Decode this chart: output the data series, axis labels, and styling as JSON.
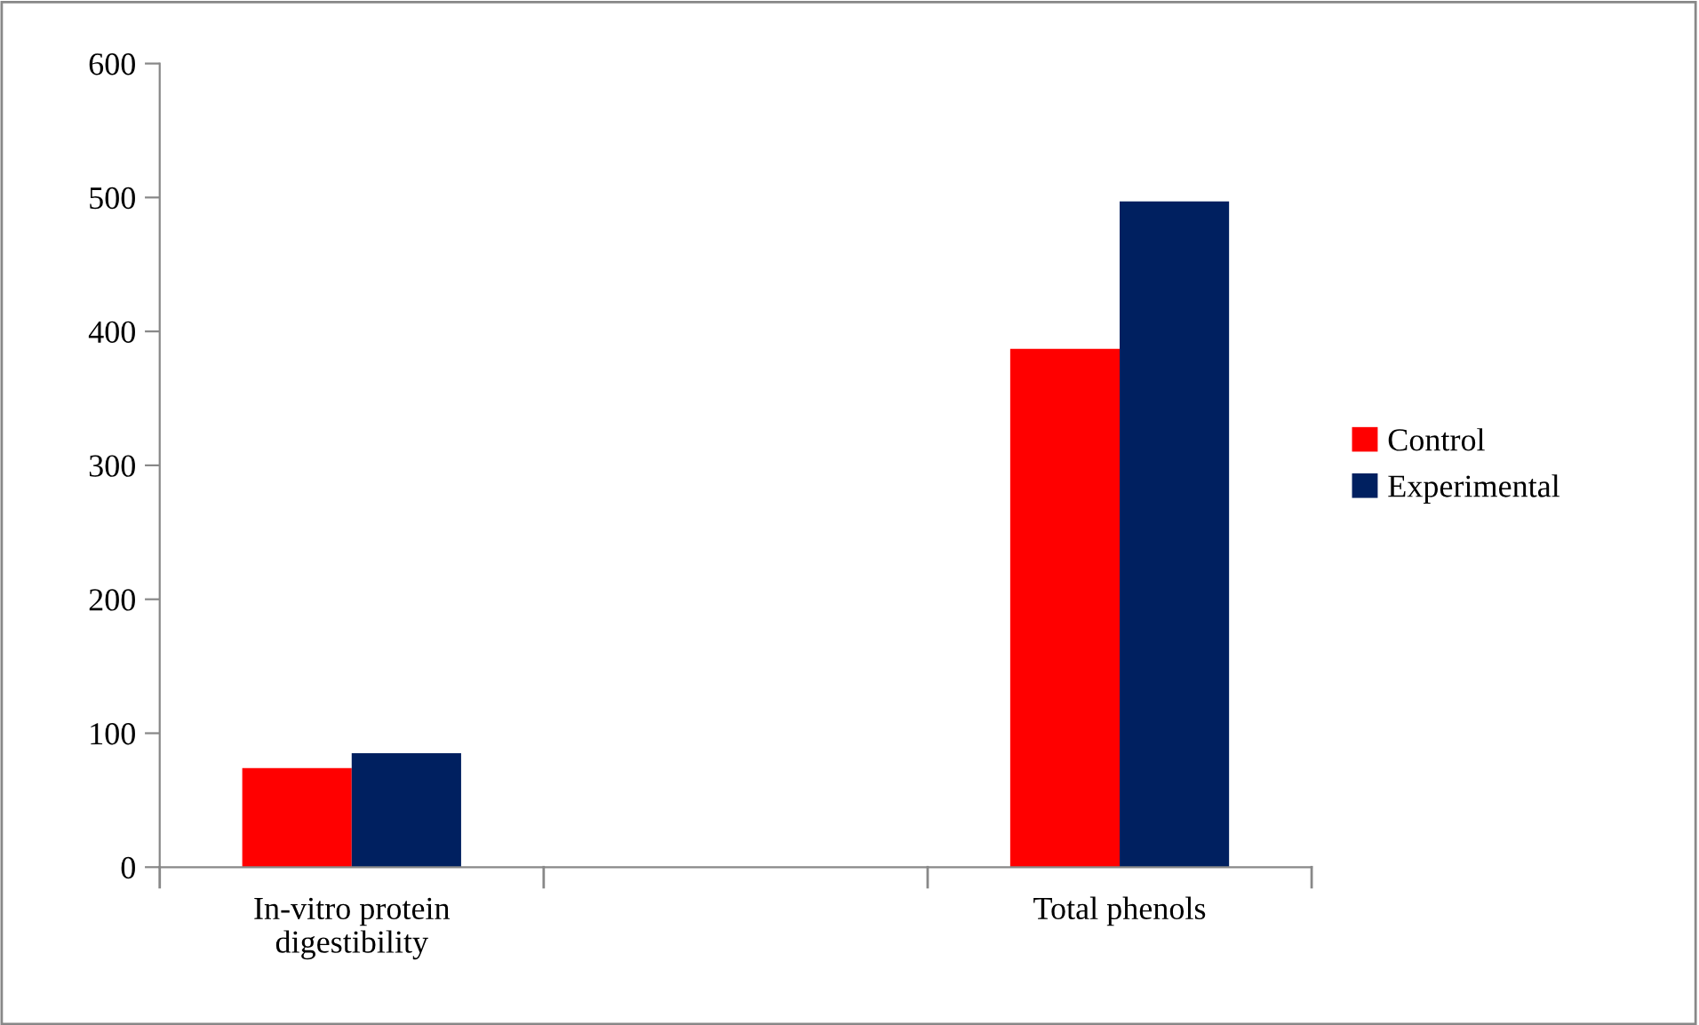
{
  "chart_data": {
    "type": "bar",
    "categories": [
      "In-vitro protein\ndigestibility",
      null,
      "Total phenols"
    ],
    "series": [
      {
        "name": "Control",
        "color": "#ff0000",
        "values": [
          74,
          null,
          387
        ]
      },
      {
        "name": "Experimental",
        "color": "#002060",
        "values": [
          85,
          null,
          497
        ]
      }
    ],
    "ylim": [
      0,
      600
    ],
    "yticks": [
      0,
      100,
      200,
      300,
      400,
      500,
      600
    ],
    "grid": false,
    "legend": "right"
  }
}
